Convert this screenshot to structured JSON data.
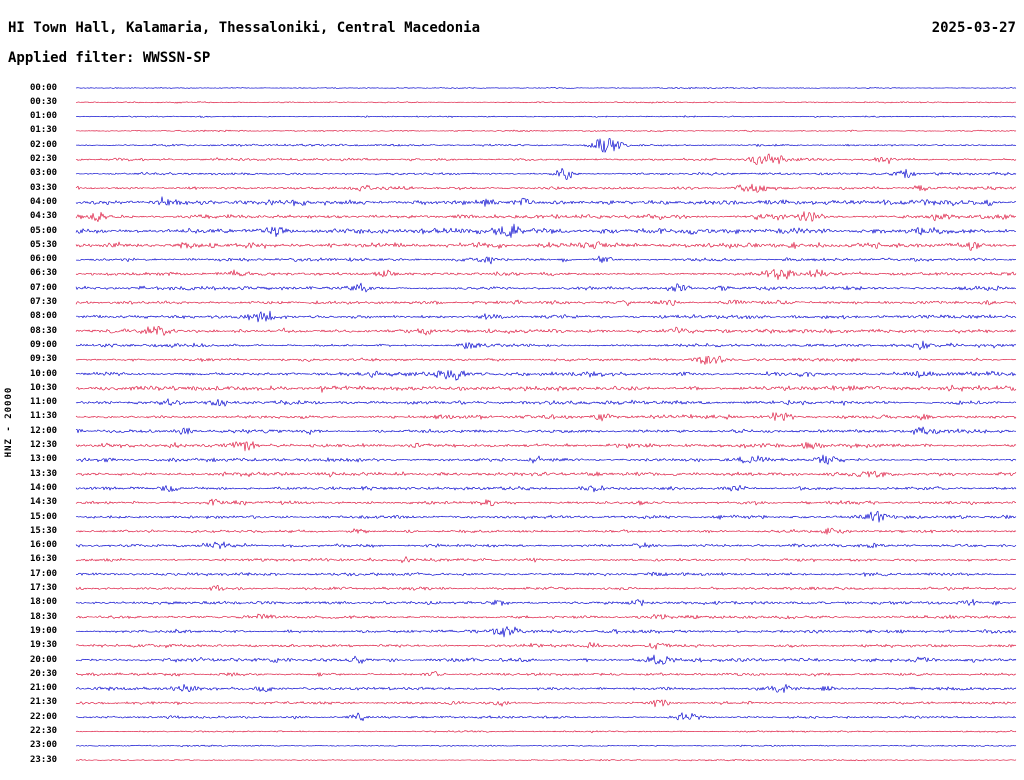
{
  "header": {
    "station_title": "HI Town Hall, Kalamaria, Thessaloniki, Central Macedonia",
    "date": "2025-03-27",
    "filter_line": "Applied filter: WWSSN-SP"
  },
  "y_axis_label": "HNZ - 20000",
  "chart_data": {
    "type": "line",
    "title": "24-hour helicorder seismogram, channel HNZ, scale 20000",
    "xlabel": "30 minutes per row",
    "ylabel": "HNZ - 20000",
    "row_duration_minutes": 30,
    "legend_position": "none",
    "grid": false,
    "colors": {
      "blue": "#0000cd",
      "red": "#dc143c"
    },
    "event_format": [
      "position_fraction_of_row",
      "amplitude_px",
      "width_px"
    ],
    "rows": [
      {
        "t": "00:00",
        "c": "blue",
        "n": 0.3,
        "e": []
      },
      {
        "t": "00:30",
        "c": "red",
        "n": 0.3,
        "e": []
      },
      {
        "t": "01:00",
        "c": "blue",
        "n": 0.3,
        "e": []
      },
      {
        "t": "01:30",
        "c": "red",
        "n": 0.35,
        "e": []
      },
      {
        "t": "02:00",
        "c": "blue",
        "n": 0.5,
        "e": [
          [
            0.565,
            8,
            16
          ]
        ]
      },
      {
        "t": "02:30",
        "c": "red",
        "n": 0.6,
        "e": [
          [
            0.735,
            7,
            18
          ],
          [
            0.86,
            3,
            10
          ]
        ]
      },
      {
        "t": "03:00",
        "c": "blue",
        "n": 0.6,
        "e": [
          [
            0.52,
            6,
            10
          ],
          [
            0.88,
            4,
            12
          ]
        ]
      },
      {
        "t": "03:30",
        "c": "red",
        "n": 0.7,
        "e": [
          [
            0.305,
            3,
            14
          ],
          [
            0.72,
            5,
            16
          ],
          [
            0.9,
            3,
            10
          ]
        ]
      },
      {
        "t": "04:00",
        "c": "blue",
        "n": 1.2,
        "e": [
          [
            0.095,
            4,
            14
          ],
          [
            0.44,
            4,
            10
          ],
          [
            0.475,
            5,
            10
          ],
          [
            0.97,
            3,
            8
          ]
        ]
      },
      {
        "t": "04:30",
        "c": "red",
        "n": 1.0,
        "e": [
          [
            0.02,
            4,
            8
          ],
          [
            0.78,
            4,
            12
          ],
          [
            0.92,
            3,
            10
          ]
        ]
      },
      {
        "t": "05:00",
        "c": "blue",
        "n": 1.3,
        "e": [
          [
            0.21,
            4,
            14
          ],
          [
            0.46,
            6,
            12
          ],
          [
            0.76,
            4,
            16
          ],
          [
            0.9,
            4,
            12
          ]
        ]
      },
      {
        "t": "05:30",
        "c": "red",
        "n": 1.2,
        "e": [
          [
            0.12,
            4,
            12
          ],
          [
            0.55,
            4,
            10
          ],
          [
            0.95,
            5,
            12
          ]
        ]
      },
      {
        "t": "06:00",
        "c": "blue",
        "n": 0.8,
        "e": [
          [
            0.44,
            3,
            10
          ],
          [
            0.56,
            4,
            10
          ]
        ]
      },
      {
        "t": "06:30",
        "c": "red",
        "n": 0.9,
        "e": [
          [
            0.17,
            3,
            12
          ],
          [
            0.33,
            4,
            10
          ],
          [
            0.75,
            6,
            14
          ],
          [
            0.79,
            5,
            10
          ]
        ]
      },
      {
        "t": "07:00",
        "c": "blue",
        "n": 0.9,
        "e": [
          [
            0.3,
            4,
            12
          ],
          [
            0.64,
            4,
            12
          ],
          [
            0.69,
            3,
            8
          ]
        ]
      },
      {
        "t": "07:30",
        "c": "red",
        "n": 0.8,
        "e": [
          [
            0.63,
            4,
            10
          ],
          [
            0.7,
            4,
            10
          ],
          [
            0.97,
            3,
            8
          ]
        ]
      },
      {
        "t": "08:00",
        "c": "blue",
        "n": 0.9,
        "e": [
          [
            0.2,
            4,
            14
          ],
          [
            0.44,
            3,
            10
          ]
        ]
      },
      {
        "t": "08:30",
        "c": "red",
        "n": 1.0,
        "e": [
          [
            0.085,
            5,
            14
          ],
          [
            0.64,
            3,
            10
          ]
        ]
      },
      {
        "t": "09:00",
        "c": "blue",
        "n": 0.8,
        "e": [
          [
            0.42,
            4,
            10
          ],
          [
            0.9,
            4,
            10
          ]
        ]
      },
      {
        "t": "09:30",
        "c": "red",
        "n": 0.7,
        "e": [
          [
            0.675,
            6,
            14
          ]
        ]
      },
      {
        "t": "10:00",
        "c": "blue",
        "n": 1.0,
        "e": [
          [
            0.4,
            6,
            16
          ],
          [
            0.9,
            3,
            10
          ]
        ]
      },
      {
        "t": "10:30",
        "c": "red",
        "n": 1.2,
        "e": [
          [
            0.85,
            3,
            10
          ]
        ]
      },
      {
        "t": "11:00",
        "c": "blue",
        "n": 1.0,
        "e": [
          [
            0.1,
            4,
            12
          ],
          [
            0.155,
            4,
            10
          ]
        ]
      },
      {
        "t": "11:30",
        "c": "red",
        "n": 0.9,
        "e": [
          [
            0.56,
            4,
            10
          ],
          [
            0.75,
            4,
            12
          ],
          [
            0.9,
            4,
            10
          ]
        ]
      },
      {
        "t": "12:00",
        "c": "blue",
        "n": 0.9,
        "e": [
          [
            0.115,
            4,
            10
          ],
          [
            0.25,
            3,
            10
          ],
          [
            0.9,
            4,
            12
          ]
        ]
      },
      {
        "t": "12:30",
        "c": "red",
        "n": 1.0,
        "e": [
          [
            0.18,
            5,
            12
          ],
          [
            0.78,
            4,
            14
          ]
        ]
      },
      {
        "t": "13:00",
        "c": "blue",
        "n": 0.9,
        "e": [
          [
            0.72,
            5,
            12
          ],
          [
            0.8,
            5,
            12
          ]
        ]
      },
      {
        "t": "13:30",
        "c": "red",
        "n": 0.9,
        "e": [
          [
            0.85,
            4,
            12
          ]
        ]
      },
      {
        "t": "14:00",
        "c": "blue",
        "n": 0.8,
        "e": [
          [
            0.1,
            4,
            10
          ],
          [
            0.55,
            4,
            12
          ],
          [
            0.7,
            4,
            10
          ]
        ]
      },
      {
        "t": "14:30",
        "c": "red",
        "n": 0.8,
        "e": [
          [
            0.15,
            3,
            10
          ],
          [
            0.44,
            3,
            10
          ]
        ]
      },
      {
        "t": "15:00",
        "c": "blue",
        "n": 0.8,
        "e": [
          [
            0.85,
            6,
            14
          ]
        ]
      },
      {
        "t": "15:30",
        "c": "red",
        "n": 0.7,
        "e": [
          [
            0.3,
            3,
            10
          ],
          [
            0.8,
            3,
            10
          ]
        ]
      },
      {
        "t": "16:00",
        "c": "blue",
        "n": 0.8,
        "e": [
          [
            0.15,
            4,
            12
          ],
          [
            0.6,
            3,
            10
          ],
          [
            0.85,
            3,
            10
          ]
        ]
      },
      {
        "t": "16:30",
        "c": "red",
        "n": 0.7,
        "e": [
          [
            0.35,
            3,
            10
          ]
        ]
      },
      {
        "t": "17:00",
        "c": "blue",
        "n": 0.7,
        "e": [
          [
            0.62,
            3,
            10
          ]
        ]
      },
      {
        "t": "17:30",
        "c": "red",
        "n": 0.7,
        "e": [
          [
            0.15,
            3,
            8
          ]
        ]
      },
      {
        "t": "18:00",
        "c": "blue",
        "n": 0.8,
        "e": [
          [
            0.45,
            3,
            10
          ],
          [
            0.6,
            3,
            10
          ],
          [
            0.95,
            4,
            10
          ]
        ]
      },
      {
        "t": "18:30",
        "c": "red",
        "n": 0.8,
        "e": [
          [
            0.2,
            3,
            10
          ],
          [
            0.62,
            3,
            10
          ]
        ]
      },
      {
        "t": "19:00",
        "c": "blue",
        "n": 0.8,
        "e": [
          [
            0.46,
            6,
            14
          ]
        ]
      },
      {
        "t": "19:30",
        "c": "red",
        "n": 0.8,
        "e": [
          [
            0.55,
            3,
            10
          ],
          [
            0.62,
            4,
            10
          ]
        ]
      },
      {
        "t": "20:00",
        "c": "blue",
        "n": 0.9,
        "e": [
          [
            0.3,
            3,
            10
          ],
          [
            0.62,
            5,
            14
          ],
          [
            0.9,
            4,
            10
          ]
        ]
      },
      {
        "t": "20:30",
        "c": "red",
        "n": 0.7,
        "e": [
          [
            0.38,
            3,
            10
          ]
        ]
      },
      {
        "t": "21:00",
        "c": "blue",
        "n": 0.8,
        "e": [
          [
            0.12,
            4,
            12
          ],
          [
            0.2,
            4,
            10
          ],
          [
            0.75,
            4,
            10
          ],
          [
            0.8,
            3,
            8
          ]
        ]
      },
      {
        "t": "21:30",
        "c": "red",
        "n": 0.7,
        "e": [
          [
            0.45,
            3,
            10
          ],
          [
            0.62,
            4,
            12
          ]
        ]
      },
      {
        "t": "22:00",
        "c": "blue",
        "n": 0.6,
        "e": [
          [
            0.3,
            4,
            10
          ],
          [
            0.65,
            4,
            12
          ]
        ]
      },
      {
        "t": "22:30",
        "c": "red",
        "n": 0.4,
        "e": []
      },
      {
        "t": "23:00",
        "c": "blue",
        "n": 0.35,
        "e": []
      },
      {
        "t": "23:30",
        "c": "red",
        "n": 0.3,
        "e": []
      }
    ]
  }
}
